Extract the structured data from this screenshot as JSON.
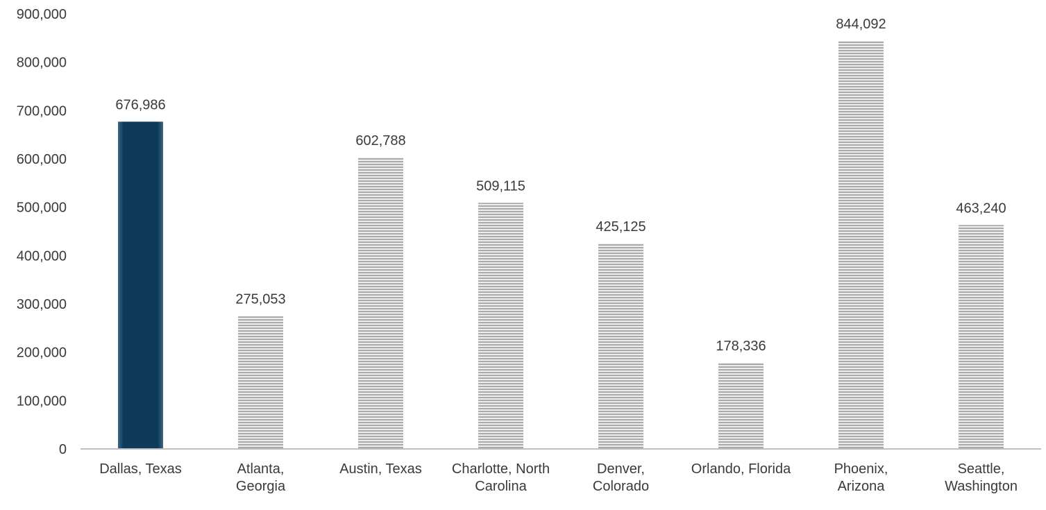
{
  "chart_data": {
    "type": "bar",
    "title": "",
    "xlabel": "",
    "ylabel": "",
    "ylim": [
      0,
      900000
    ],
    "yticks": [
      0,
      100000,
      200000,
      300000,
      400000,
      500000,
      600000,
      700000,
      800000,
      900000
    ],
    "ytick_labels": [
      "0",
      "100,000",
      "200,000",
      "300,000",
      "400,000",
      "500,000",
      "600,000",
      "700,000",
      "800,000",
      "900,000"
    ],
    "grid": false,
    "legend": "none",
    "categories": [
      [
        "Dallas, Texas"
      ],
      [
        "Atlanta,",
        "Georgia"
      ],
      [
        "Austin, Texas"
      ],
      [
        "Charlotte, North",
        "Carolina"
      ],
      [
        "Denver,",
        "Colorado"
      ],
      [
        "Orlando, Florida"
      ],
      [
        "Phoenix,",
        "Arizona"
      ],
      [
        "Seattle,",
        "Washington"
      ]
    ],
    "values": [
      676986,
      275053,
      602788,
      509115,
      425125,
      178336,
      844092,
      463240
    ],
    "value_labels": [
      "676,986",
      "275,053",
      "602,788",
      "509,115",
      "425,125",
      "178,336",
      "844,092",
      "463,240"
    ],
    "highlight_index": 0,
    "colors": {
      "highlight": "#0e3a5a",
      "highlight_edge": "#3f6682",
      "striped_bar_base": "#eeeeee",
      "striped_bar_line": "#a9a9a9",
      "axis": "#bfbfbf",
      "text": "#3a3a3a"
    }
  }
}
